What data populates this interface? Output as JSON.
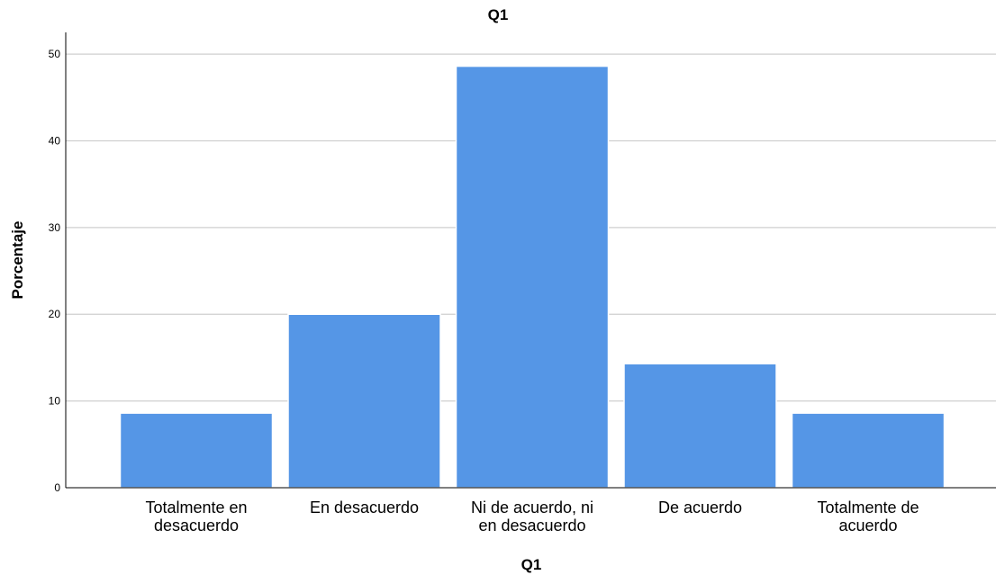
{
  "chart_data": {
    "type": "bar",
    "title": "Q1",
    "xlabel": "Q1",
    "ylabel": "Porcentaje",
    "categories": [
      [
        "Totalmente en",
        "desacuerdo"
      ],
      [
        "En desacuerdo"
      ],
      [
        "Ni de acuerdo, ni",
        "en desacuerdo"
      ],
      [
        "De acuerdo"
      ],
      [
        "Totalmente de",
        "acuerdo"
      ]
    ],
    "values": [
      8.6,
      20.0,
      48.6,
      14.3,
      8.6
    ],
    "ylim": [
      0,
      52.5
    ],
    "yticks": [
      0,
      10,
      20,
      30,
      40,
      50
    ],
    "grid": true,
    "bar_color": "#5596e6"
  }
}
